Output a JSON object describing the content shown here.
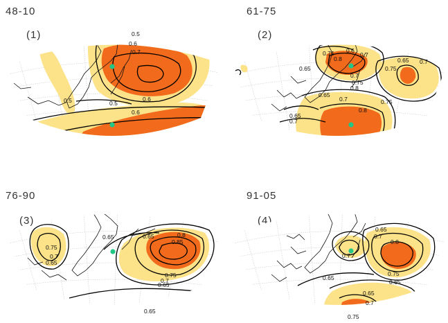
{
  "panels": [
    {
      "id": "p1",
      "period": "48-10",
      "label": "(1)",
      "contour_labels": [
        "0.5",
        "0.6",
        "0.7",
        "0.6",
        "0.5",
        "0.6",
        "0.5"
      ],
      "colors": {
        "light": "#fce38a",
        "dark": "#f26a1b"
      }
    },
    {
      "id": "p2",
      "period": "61-75",
      "label": "(2)",
      "contour_labels": [
        "0.75",
        "0.6",
        "0.7",
        "0.8",
        "0.65",
        "0.75",
        "0.7",
        "0.65",
        "0.7",
        "0.75",
        "0.8",
        "0.65",
        "0.7",
        "0.8",
        "0.75",
        "0.65",
        "0.7"
      ],
      "colors": {
        "light": "#fce38a",
        "dark": "#f26a1b"
      }
    },
    {
      "id": "p3",
      "period": "76-90",
      "label": "(3)",
      "contour_labels": [
        "0.75",
        "0.7",
        "0.65",
        "0.65",
        "0.65",
        "0.8",
        "0.85",
        "0.75",
        "0.7",
        "0.65",
        "0.65"
      ],
      "colors": {
        "light": "#fce38a",
        "dark": "#f26a1b"
      }
    },
    {
      "id": "p4",
      "period": "91-05",
      "label": "(4)",
      "contour_labels": [
        "0.65",
        "0.7",
        "0.7",
        "0.8",
        "0.75",
        "0.65",
        "0.65",
        "0.65",
        "0.7",
        "0.75"
      ],
      "colors": {
        "light": "#fce38a",
        "dark": "#f26a1b"
      }
    }
  ],
  "marker_color": "#22c787"
}
